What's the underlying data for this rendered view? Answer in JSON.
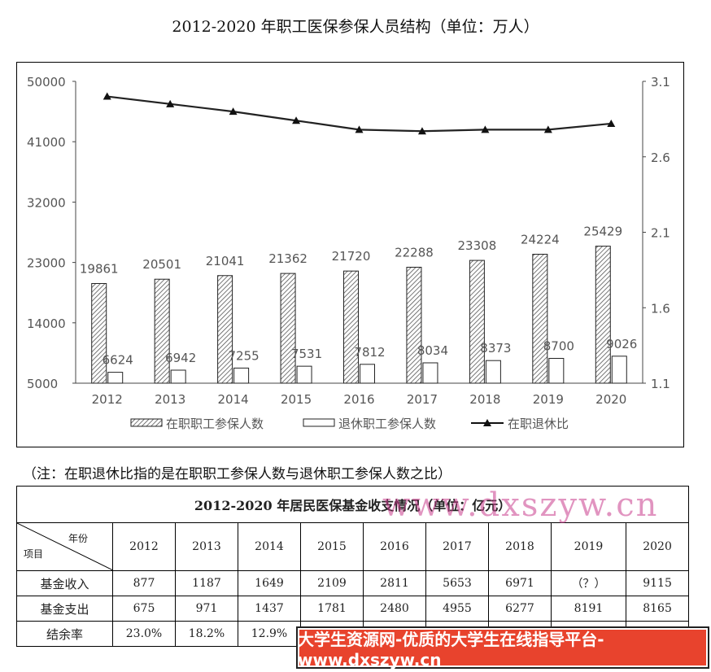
{
  "chart_data": {
    "type": "bar",
    "title": "2012-2020 年职工医保参保人员结构（单位：万人）",
    "categories": [
      "2012",
      "2013",
      "2014",
      "2015",
      "2016",
      "2017",
      "2018",
      "2019",
      "2020"
    ],
    "series": [
      {
        "name": "在职职工参保人数",
        "type": "bar",
        "pattern": "hatched",
        "values": [
          19861,
          20501,
          21041,
          21362,
          21720,
          22288,
          23308,
          24224,
          25429
        ]
      },
      {
        "name": "退休职工参保人数",
        "type": "bar",
        "pattern": "white",
        "values": [
          6624,
          6942,
          7255,
          7531,
          7812,
          8034,
          8373,
          8700,
          9026
        ]
      },
      {
        "name": "在职退休比",
        "type": "line",
        "axis": "right",
        "values": [
          3.0,
          2.95,
          2.9,
          2.84,
          2.78,
          2.77,
          2.78,
          2.78,
          2.82
        ]
      }
    ],
    "y_left": {
      "min": 5000,
      "max": 50000,
      "ticks": [
        "50000",
        "41000",
        "32000",
        "23000",
        "14000",
        "5000"
      ]
    },
    "y_right": {
      "min": 1.1,
      "max": 3.1,
      "ticks": [
        "3.1",
        "2.6",
        "2.1",
        "1.6",
        "1.1"
      ]
    },
    "legend_position": "bottom"
  },
  "note": "（注：在职退休比指的是在职职工参保人数与退休职工参保人数之比）",
  "table": {
    "title": "2012-2020 年居民医保基金收支情况（单位：亿元）",
    "corner_top": "年份",
    "corner_bottom": "项目",
    "years": [
      "2012",
      "2013",
      "2014",
      "2015",
      "2016",
      "2017",
      "2018",
      "2019",
      "2020"
    ],
    "rows": [
      {
        "label": "基金收入",
        "values": [
          "877",
          "1187",
          "1649",
          "2109",
          "2811",
          "5653",
          "6971",
          "（？）",
          "9115"
        ]
      },
      {
        "label": "基金支出",
        "values": [
          "675",
          "971",
          "1437",
          "1781",
          "2480",
          "4955",
          "6277",
          "8191",
          "8165"
        ]
      },
      {
        "label": "结余率",
        "values": [
          "23.0%",
          "18.2%",
          "12.9%",
          "",
          "",
          "",
          "",
          "",
          ""
        ]
      }
    ]
  },
  "watermark": "www.dxszyw.cn",
  "banner": "大学生资源网-优质的大学生在线指导平台-www.dxszyw.cn"
}
